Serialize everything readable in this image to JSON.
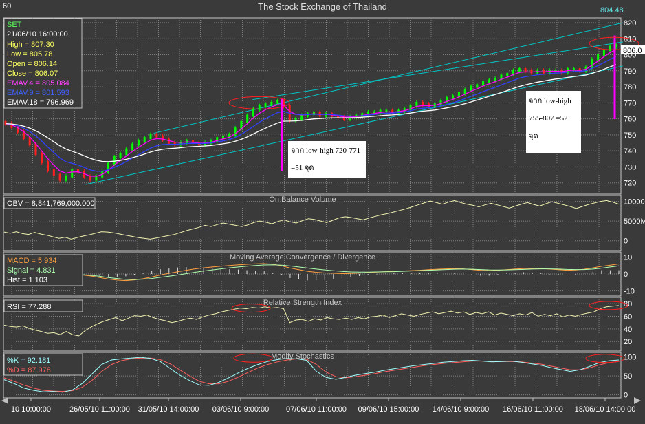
{
  "header": {
    "interval": "60",
    "title": "The Stock Exchange of Thailand",
    "last_value": "804.48"
  },
  "price_panel": {
    "info": {
      "symbol": "SET",
      "datetime": "21/06/10 16:00:00",
      "high": "High  = 807.30",
      "low": "Low   = 805.78",
      "open": "Open = 806.14",
      "close": "Close = 806.07",
      "emav4": "EMAV.4 = 805.084",
      "emav9": "EMAV.9 = 801.593",
      "emav18": "EMAV.18 = 796.969"
    },
    "price_tag": "806.0",
    "annotations": [
      {
        "lines": [
          "จาก low-high 720-771",
          "=51 จุด"
        ]
      },
      {
        "lines": [
          "จาก low-high",
          "755-807 =52",
          "จุด"
        ]
      }
    ]
  },
  "obv_panel": {
    "title": "On Balance Volume",
    "label": "OBV = 8,841,769,000.000"
  },
  "macd_panel": {
    "title": "Moving Average Convergence / Divergence",
    "macd": "MACD = 5.934",
    "signal": "Signal = 4.831",
    "hist": "Hist = 1.103"
  },
  "rsi_panel": {
    "title": "Relative Strength Index",
    "label": "RSI = 77.288"
  },
  "stoch_panel": {
    "title": "Modify Stochastics",
    "k": "%K = 92.181",
    "d": "%D = 87.978"
  },
  "colors": {
    "background": "#3a3a3a",
    "grid": "#808080",
    "up": "#00ff00",
    "down": "#ff2020",
    "ema4": "#ff00ff",
    "ema9": "#3040ff",
    "ema18": "#ffffff",
    "channel": "#00c8c8",
    "text": "#ffffff",
    "highlight": "#ff2020",
    "marker": "#ff00ff",
    "obv": "#f0f0b0",
    "macd": "#ffa040",
    "signal": "#b0ffb0",
    "rsi": "#f0f0b0",
    "stoch_k": "#a0ffff",
    "stoch_d": "#ff6060"
  },
  "chart_data": [
    {
      "type": "candlestick",
      "title": "The Stock Exchange of Thailand",
      "symbol": "SET",
      "interval": "60",
      "x_tick_labels": [
        "10 10:00:00",
        "26/05/10 11:00:00",
        "31/05/10 14:00:00",
        "03/06/10 9:00:00",
        "07/06/10 11:00:00",
        "09/06/10 15:00:00",
        "14/06/10 9:00:00",
        "16/06/10 11:00:00",
        "18/06/10 14:00:00"
      ],
      "y_ticks": [
        720,
        730,
        740,
        750,
        760,
        770,
        780,
        790,
        800,
        810,
        820
      ],
      "ylim": [
        713,
        823
      ],
      "close_series": [
        757,
        755,
        752,
        748,
        744,
        738,
        733,
        728,
        725,
        722,
        724,
        728,
        727,
        724,
        722,
        724,
        727,
        732,
        736,
        738,
        741,
        744,
        746,
        748,
        750,
        749,
        747,
        745,
        744,
        745,
        746,
        745,
        744,
        745,
        746,
        748,
        749,
        750,
        754,
        758,
        762,
        766,
        768,
        769,
        770,
        771,
        768,
        759,
        760,
        762,
        763,
        764,
        762,
        763,
        762,
        761,
        760,
        761,
        762,
        763,
        764,
        764,
        765,
        765,
        764,
        765,
        766,
        768,
        770,
        769,
        768,
        769,
        771,
        773,
        774,
        776,
        778,
        780,
        781,
        783,
        784,
        785,
        787,
        788,
        790,
        791,
        790,
        789,
        790,
        789,
        790,
        790,
        789,
        791,
        791,
        790,
        792,
        797,
        800,
        803,
        805,
        806
      ],
      "emav4_last": 805.084,
      "emav9_last": 801.593,
      "emav18_last": 796.969,
      "channel_lines": [
        {
          "from": [
            0.24,
            751
          ],
          "to": [
            1.0,
            820
          ]
        },
        {
          "from": [
            0.13,
            719
          ],
          "to": [
            1.0,
            793
          ]
        },
        {
          "from": [
            0.4,
            772
          ],
          "to": [
            1.0,
            808
          ]
        }
      ]
    },
    {
      "type": "line",
      "title": "On Balance Volume",
      "y_tick_labels": [
        "10000",
        "5000M",
        "0"
      ],
      "ylim": [
        -2500,
        11500
      ],
      "series": [
        {
          "values": [
            2200,
            1900,
            2300,
            1800,
            1600,
            2100,
            1700,
            1400,
            1000,
            600,
            900,
            400,
            800,
            1200,
            1500,
            1900,
            2300,
            2200,
            2000,
            1700,
            1400,
            1100,
            800,
            600,
            400,
            700,
            1000,
            1300,
            1600,
            2100,
            2600,
            3000,
            3400,
            3900,
            3600,
            4100,
            4500,
            4200,
            3900,
            3600,
            4000,
            4600,
            5000,
            4700,
            4300,
            4900,
            5300,
            4800,
            4500,
            5100,
            5600,
            5400,
            5000,
            4600,
            5200,
            5800,
            6100,
            5900,
            5600,
            5300,
            5800,
            6200,
            6600,
            6900,
            7300,
            7700,
            8100,
            8600,
            9100,
            9600,
            10100,
            9700,
            9300,
            9800,
            10200,
            9700,
            9300,
            9000,
            8600,
            9100,
            9500,
            9100,
            8700,
            8300,
            8800,
            9300,
            9700,
            9200,
            8800,
            9400,
            9900,
            9500,
            9100,
            8700,
            8200,
            8700,
            9200,
            9600,
            10000,
            10200,
            9800,
            9300
          ]
        }
      ]
    },
    {
      "type": "line",
      "title": "Moving Average Convergence / Divergence",
      "y_ticks": [
        -10,
        0,
        10
      ],
      "ylim": [
        -13,
        13
      ],
      "series": [
        {
          "values": [
            -0.6,
            -1.2,
            -2.1,
            -3.0,
            -3.6,
            -3.9,
            -3.5,
            -2.8,
            -1.8,
            -0.6,
            0.4,
            1.3,
            2.2,
            3.0,
            3.6,
            4.1,
            4.6,
            5.0,
            5.4,
            5.7,
            6.0,
            6.1,
            5.8,
            4.8,
            3.5,
            2.5,
            1.6,
            1.0,
            0.6,
            0.4,
            0.2,
            0.3,
            0.5,
            0.8,
            1.1,
            1.4,
            1.6,
            1.8,
            2.0,
            2.2,
            2.5,
            2.8,
            3.0,
            3.1,
            3.0,
            2.6,
            2.1,
            1.9,
            2.1,
            2.5,
            2.9,
            3.2,
            3.3,
            3.2,
            2.9,
            2.5,
            2.2,
            2.3,
            2.8,
            3.6,
            4.5,
            5.2,
            5.9
          ]
        },
        {
          "values": [
            -0.4,
            -0.8,
            -1.4,
            -2.1,
            -2.7,
            -3.2,
            -3.3,
            -3.1,
            -2.7,
            -2.0,
            -1.3,
            -0.6,
            0.2,
            1.0,
            1.7,
            2.4,
            3.0,
            3.6,
            4.1,
            4.6,
            5.0,
            5.3,
            5.4,
            5.2,
            4.7,
            4.1,
            3.5,
            2.9,
            2.4,
            1.9,
            1.5,
            1.2,
            1.1,
            1.1,
            1.2,
            1.3,
            1.4,
            1.6,
            1.8,
            2.0,
            2.2,
            2.4,
            2.6,
            2.8,
            2.9,
            2.8,
            2.6,
            2.4,
            2.3,
            2.4,
            2.5,
            2.7,
            2.9,
            3.0,
            3.0,
            2.9,
            2.7,
            2.6,
            2.6,
            2.9,
            3.4,
            4.1,
            4.8
          ]
        }
      ]
    },
    {
      "type": "line",
      "title": "Relative Strength Index",
      "y_ticks": [
        20,
        40,
        60,
        80
      ],
      "ylim": [
        5,
        90
      ],
      "series": [
        {
          "values": [
            46,
            44,
            43,
            45,
            41,
            38,
            36,
            33,
            34,
            31,
            36,
            31,
            29,
            37,
            43,
            48,
            52,
            55,
            58,
            53,
            57,
            61,
            60,
            62,
            58,
            55,
            53,
            50,
            52,
            55,
            57,
            55,
            59,
            62,
            64,
            67,
            69,
            71,
            73,
            72,
            74,
            73,
            75,
            73,
            74,
            72,
            50,
            54,
            55,
            52,
            56,
            54,
            58,
            56,
            55,
            57,
            55,
            58,
            56,
            59,
            60,
            62,
            58,
            61,
            64,
            62,
            60,
            63,
            65,
            67,
            64,
            66,
            68,
            65,
            67,
            63,
            66,
            64,
            67,
            62,
            65,
            63,
            61,
            64,
            62,
            66,
            60,
            63,
            61,
            64,
            59,
            62,
            60,
            63,
            65,
            67,
            72,
            75,
            76,
            77
          ]
        }
      ]
    },
    {
      "type": "line",
      "title": "Modify Stochastics",
      "y_ticks": [
        0,
        50,
        100
      ],
      "ylim": [
        -8,
        112
      ],
      "series": [
        {
          "values": [
            40,
            30,
            18,
            12,
            8,
            9,
            7,
            13,
            30,
            55,
            80,
            92,
            95,
            97,
            99,
            96,
            88,
            70,
            52,
            38,
            26,
            25,
            33,
            45,
            58,
            70,
            80,
            88,
            93,
            96,
            95,
            91,
            62,
            46,
            41,
            46,
            52,
            56,
            60,
            65,
            69,
            73,
            77,
            80,
            83,
            86,
            88,
            90,
            91,
            89,
            87,
            88,
            89,
            86,
            82,
            78,
            72,
            67,
            62,
            66,
            75,
            85,
            90,
            92
          ]
        },
        {
          "values": [
            45,
            36,
            26,
            18,
            12,
            10,
            9,
            11,
            20,
            38,
            62,
            80,
            90,
            95,
            97,
            97,
            93,
            82,
            66,
            50,
            36,
            29,
            29,
            36,
            47,
            59,
            71,
            80,
            87,
            92,
            95,
            94,
            80,
            60,
            48,
            45,
            48,
            52,
            56,
            61,
            65,
            69,
            73,
            77,
            80,
            83,
            85,
            87,
            89,
            89,
            88,
            88,
            88,
            87,
            84,
            81,
            76,
            71,
            66,
            66,
            71,
            79,
            85,
            88
          ]
        }
      ]
    }
  ]
}
